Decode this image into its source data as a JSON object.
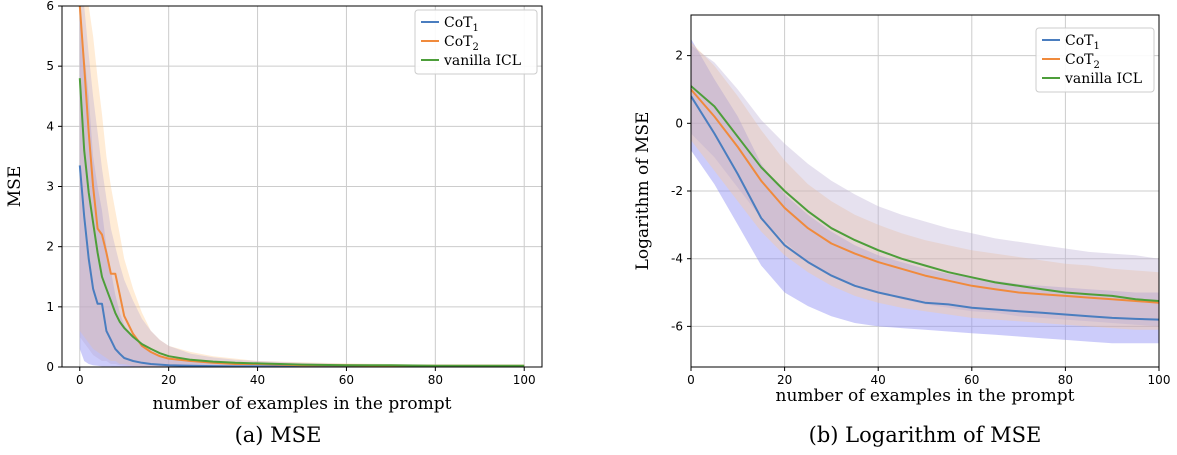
{
  "figure": {
    "captions": [
      "(a) MSE",
      "(b) Logarithm of MSE"
    ]
  },
  "chart_data": [
    {
      "type": "line",
      "ylabel": "MSE",
      "xlabel": "number of examples in the prompt",
      "xlim": [
        -4,
        104
      ],
      "ylim": [
        0,
        6
      ],
      "xticks": [
        0,
        20,
        40,
        60,
        80,
        100
      ],
      "yticks": [
        0,
        1,
        2,
        3,
        4,
        5,
        6
      ],
      "grid": true,
      "legend": {
        "placement": "top-right"
      },
      "x": [
        0,
        1,
        2,
        3,
        4,
        5,
        6,
        7,
        8,
        9,
        10,
        12,
        14,
        16,
        18,
        20,
        25,
        30,
        35,
        40,
        50,
        60,
        70,
        80,
        90,
        100
      ],
      "series": [
        {
          "name": "CoT",
          "name_sub": "1",
          "color": "#4a7dbf",
          "values": [
            3.35,
            2.5,
            1.8,
            1.3,
            1.05,
            1.05,
            0.6,
            0.45,
            0.3,
            0.22,
            0.15,
            0.1,
            0.07,
            0.05,
            0.04,
            0.03,
            0.02,
            0.015,
            0.01,
            0.01,
            0.01,
            0.01,
            0.01,
            0.01,
            0.01,
            0.01
          ],
          "band_low": [
            0.3,
            0.1,
            0.05,
            0.03,
            0.02,
            0.01,
            0.01,
            0.01,
            0.0,
            0.0,
            0.0,
            0.0,
            0.0,
            0.0,
            0.0,
            0.0,
            0.0,
            0.0,
            0.0,
            0.0,
            0.0,
            0.0,
            0.0,
            0.0,
            0.0,
            0.0
          ],
          "band_high": [
            6.0,
            5.2,
            4.5,
            3.5,
            3.0,
            2.6,
            2.0,
            1.6,
            1.2,
            0.9,
            0.7,
            0.5,
            0.35,
            0.25,
            0.2,
            0.15,
            0.1,
            0.08,
            0.06,
            0.05,
            0.04,
            0.03,
            0.03,
            0.02,
            0.02,
            0.02
          ]
        },
        {
          "name": "CoT",
          "name_sub": "2",
          "color": "#f08a3c",
          "values": [
            6.0,
            5.0,
            3.9,
            3.0,
            2.3,
            2.2,
            1.9,
            1.55,
            1.55,
            1.2,
            0.85,
            0.55,
            0.35,
            0.25,
            0.18,
            0.14,
            0.1,
            0.07,
            0.05,
            0.05,
            0.03,
            0.03,
            0.02,
            0.02,
            0.02,
            0.02
          ],
          "band_low": [
            0.6,
            0.5,
            0.4,
            0.3,
            0.25,
            0.2,
            0.15,
            0.1,
            0.1,
            0.05,
            0.05,
            0.02,
            0.01,
            0.01,
            0.0,
            0.0,
            0.0,
            0.0,
            0.0,
            0.0,
            0.0,
            0.0,
            0.0,
            0.0,
            0.0,
            0.0
          ],
          "band_high": [
            6.0,
            6.0,
            6.0,
            5.5,
            4.8,
            4.2,
            3.5,
            3.0,
            2.6,
            2.2,
            1.8,
            1.3,
            0.9,
            0.6,
            0.45,
            0.35,
            0.25,
            0.18,
            0.14,
            0.1,
            0.08,
            0.06,
            0.05,
            0.04,
            0.04,
            0.03
          ]
        },
        {
          "name": "vanilla ICL",
          "name_sub": "",
          "color": "#4d9e3a",
          "values": [
            4.8,
            3.6,
            2.9,
            2.4,
            1.9,
            1.5,
            1.3,
            1.1,
            0.9,
            0.75,
            0.65,
            0.5,
            0.38,
            0.3,
            0.23,
            0.18,
            0.12,
            0.09,
            0.07,
            0.06,
            0.04,
            0.03,
            0.03,
            0.02,
            0.02,
            0.02
          ],
          "band_low": [
            0.5,
            0.4,
            0.3,
            0.2,
            0.15,
            0.1,
            0.1,
            0.05,
            0.05,
            0.03,
            0.02,
            0.01,
            0.01,
            0.0,
            0.0,
            0.0,
            0.0,
            0.0,
            0.0,
            0.0,
            0.0,
            0.0,
            0.0,
            0.0,
            0.0,
            0.0
          ],
          "band_high": [
            6.0,
            6.0,
            5.2,
            4.5,
            3.9,
            3.3,
            2.8,
            2.3,
            2.0,
            1.7,
            1.45,
            1.1,
            0.8,
            0.6,
            0.45,
            0.35,
            0.22,
            0.16,
            0.12,
            0.1,
            0.07,
            0.05,
            0.04,
            0.04,
            0.03,
            0.03
          ]
        }
      ]
    },
    {
      "type": "line",
      "ylabel": "Logarithm of MSE",
      "xlabel": "number of examples in the prompt",
      "xlim": [
        0,
        100
      ],
      "ylim": [
        -7.2,
        3.2
      ],
      "xticks": [
        0,
        20,
        40,
        60,
        80,
        100
      ],
      "yticks": [
        -6,
        -4,
        -2,
        0,
        2
      ],
      "grid": true,
      "legend": {
        "placement": "top-right"
      },
      "x": [
        0,
        5,
        10,
        15,
        20,
        25,
        30,
        35,
        40,
        45,
        50,
        55,
        60,
        65,
        70,
        75,
        80,
        85,
        90,
        95,
        100
      ],
      "series": [
        {
          "name": "CoT",
          "name_sub": "1",
          "color": "#4a7dbf",
          "values": [
            0.8,
            -0.3,
            -1.5,
            -2.8,
            -3.6,
            -4.1,
            -4.5,
            -4.8,
            -5.0,
            -5.15,
            -5.3,
            -5.35,
            -5.45,
            -5.5,
            -5.55,
            -5.6,
            -5.65,
            -5.7,
            -5.75,
            -5.78,
            -5.8
          ],
          "band_low": [
            -0.8,
            -1.8,
            -3.0,
            -4.2,
            -5.0,
            -5.4,
            -5.7,
            -5.9,
            -6.0,
            -6.05,
            -6.1,
            -6.15,
            -6.2,
            -6.25,
            -6.3,
            -6.35,
            -6.4,
            -6.45,
            -6.5,
            -6.5,
            -6.5
          ],
          "band_high": [
            2.5,
            1.3,
            0.2,
            -1.2,
            -2.1,
            -2.7,
            -3.2,
            -3.6,
            -3.9,
            -4.1,
            -4.3,
            -4.45,
            -4.55,
            -4.65,
            -4.75,
            -4.8,
            -4.85,
            -4.9,
            -4.95,
            -5.0,
            -5.0
          ]
        },
        {
          "name": "CoT",
          "name_sub": "2",
          "color": "#f08a3c",
          "values": [
            1.0,
            0.2,
            -0.7,
            -1.7,
            -2.5,
            -3.1,
            -3.55,
            -3.85,
            -4.1,
            -4.3,
            -4.5,
            -4.65,
            -4.8,
            -4.9,
            -5.0,
            -5.05,
            -5.1,
            -5.15,
            -5.2,
            -5.25,
            -5.3
          ],
          "band_low": [
            -0.5,
            -1.4,
            -2.3,
            -3.2,
            -3.9,
            -4.4,
            -4.8,
            -5.1,
            -5.3,
            -5.45,
            -5.55,
            -5.65,
            -5.75,
            -5.8,
            -5.85,
            -5.9,
            -5.95,
            -6.0,
            -6.05,
            -6.1,
            -6.1
          ],
          "band_high": [
            2.4,
            1.7,
            0.8,
            -0.2,
            -1.1,
            -1.8,
            -2.3,
            -2.7,
            -3.0,
            -3.25,
            -3.45,
            -3.6,
            -3.75,
            -3.85,
            -3.95,
            -4.05,
            -4.15,
            -4.2,
            -4.3,
            -4.35,
            -4.4
          ]
        },
        {
          "name": "vanilla ICL",
          "name_sub": "",
          "color": "#4d9e3a",
          "values": [
            1.1,
            0.5,
            -0.4,
            -1.3,
            -2.0,
            -2.6,
            -3.1,
            -3.45,
            -3.75,
            -4.0,
            -4.2,
            -4.4,
            -4.55,
            -4.7,
            -4.8,
            -4.9,
            -5.0,
            -5.05,
            -5.1,
            -5.2,
            -5.25
          ],
          "band_low": [
            -0.3,
            -1.0,
            -1.9,
            -2.8,
            -3.5,
            -4.1,
            -4.5,
            -4.8,
            -5.0,
            -5.2,
            -5.35,
            -5.45,
            -5.55,
            -5.6,
            -5.7,
            -5.75,
            -5.8,
            -5.85,
            -5.9,
            -5.95,
            -6.0
          ],
          "band_high": [
            2.3,
            1.8,
            1.0,
            0.1,
            -0.6,
            -1.2,
            -1.7,
            -2.1,
            -2.45,
            -2.7,
            -2.9,
            -3.1,
            -3.25,
            -3.4,
            -3.5,
            -3.6,
            -3.7,
            -3.8,
            -3.85,
            -3.9,
            -4.0
          ]
        }
      ]
    }
  ]
}
